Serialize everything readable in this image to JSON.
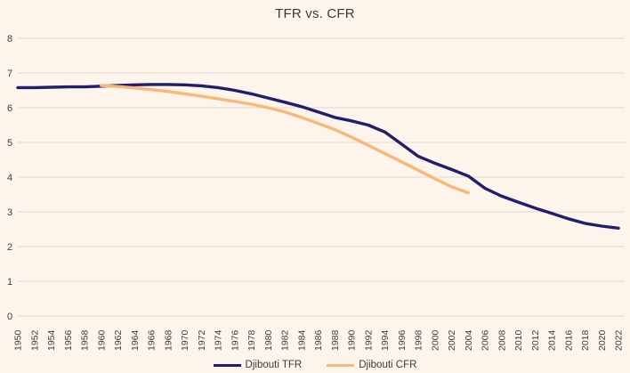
{
  "chart_data": {
    "type": "line",
    "title": "TFR vs. CFR",
    "xlabel": "",
    "ylabel": "",
    "x_min": 1950,
    "x_max": 2022,
    "x_tick_step": 2,
    "categories": [
      "1950",
      "1952",
      "1954",
      "1956",
      "1958",
      "1960",
      "1962",
      "1964",
      "1966",
      "1968",
      "1970",
      "1972",
      "1974",
      "1976",
      "1978",
      "1980",
      "1982",
      "1984",
      "1986",
      "1988",
      "1990",
      "1992",
      "1994",
      "1996",
      "1998",
      "2000",
      "2002",
      "2004",
      "2006",
      "2008",
      "2010",
      "2012",
      "2014",
      "2016",
      "2018",
      "2020",
      "2022"
    ],
    "ylim": [
      0,
      8
    ],
    "y_ticks": [
      0,
      1,
      2,
      3,
      4,
      5,
      6,
      7,
      8
    ],
    "grid": true,
    "legend_position": "bottom",
    "series": [
      {
        "name": "Djibouti TFR",
        "color": "#221e6b",
        "start_year": 1950,
        "step": 2,
        "values": [
          6.58,
          6.58,
          6.59,
          6.6,
          6.6,
          6.62,
          6.64,
          6.66,
          6.67,
          6.67,
          6.66,
          6.63,
          6.58,
          6.5,
          6.4,
          6.28,
          6.16,
          6.03,
          5.88,
          5.72,
          5.62,
          5.5,
          5.3,
          4.95,
          4.6,
          4.4,
          4.22,
          4.03,
          3.68,
          3.45,
          3.28,
          3.11,
          2.96,
          2.8,
          2.67,
          2.59,
          2.53
        ]
      },
      {
        "name": "Djibouti CFR",
        "color": "#f8b878",
        "start_year": 1960,
        "step": 2,
        "values": [
          6.64,
          6.61,
          6.57,
          6.52,
          6.47,
          6.4,
          6.33,
          6.26,
          6.18,
          6.1,
          6.0,
          5.88,
          5.72,
          5.55,
          5.37,
          5.15,
          4.92,
          4.68,
          4.44,
          4.2,
          3.95,
          3.72,
          3.55
        ]
      }
    ],
    "colors": {
      "background": "#fdf4ec",
      "gridline": "#dedad5",
      "text": "#3d3d3d",
      "title_text": "#3b3b3b"
    }
  }
}
